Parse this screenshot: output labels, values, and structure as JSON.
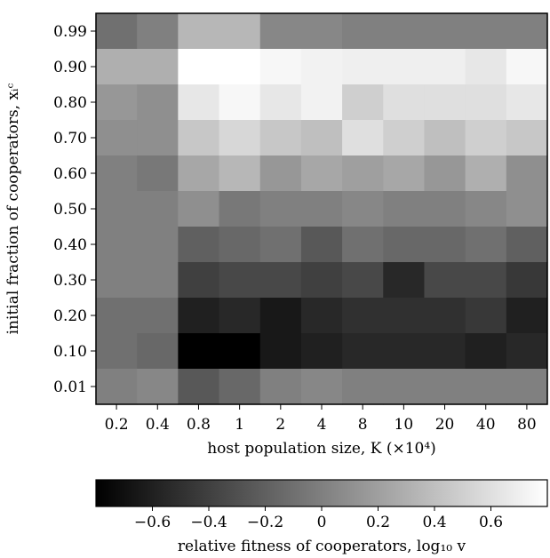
{
  "chart_data": {
    "type": "heatmap",
    "title": "",
    "xlabel": "host population size, K (×10⁴)",
    "ylabel": "initial fraction of cooperators, xᵢᶜ",
    "x_categories": [
      "0.2",
      "0.4",
      "0.8",
      "1",
      "2",
      "4",
      "8",
      "10",
      "20",
      "40",
      "80"
    ],
    "y_categories": [
      "0.99",
      "0.90",
      "0.80",
      "0.70",
      "0.60",
      "0.50",
      "0.40",
      "0.30",
      "0.20",
      "0.10",
      "0.01"
    ],
    "values": [
      [
        -0.1,
        0.0,
        0.35,
        0.35,
        0.05,
        0.05,
        0.0,
        0.0,
        0.0,
        0.0,
        0.0
      ],
      [
        0.3,
        0.3,
        0.8,
        0.8,
        0.75,
        0.72,
        0.7,
        0.7,
        0.7,
        0.65,
        0.75
      ],
      [
        0.15,
        0.1,
        0.65,
        0.75,
        0.65,
        0.72,
        0.5,
        0.6,
        0.6,
        0.6,
        0.65
      ],
      [
        0.1,
        0.1,
        0.45,
        0.55,
        0.45,
        0.4,
        0.6,
        0.5,
        0.4,
        0.5,
        0.45
      ],
      [
        0.0,
        -0.05,
        0.25,
        0.35,
        0.15,
        0.25,
        0.2,
        0.25,
        0.15,
        0.3,
        0.1
      ],
      [
        0.0,
        0.0,
        0.1,
        -0.05,
        0.0,
        0.0,
        0.05,
        0.0,
        0.0,
        0.05,
        0.1
      ],
      [
        0.0,
        0.0,
        -0.2,
        -0.15,
        -0.1,
        -0.25,
        -0.1,
        -0.15,
        -0.15,
        -0.1,
        -0.2
      ],
      [
        0.0,
        0.0,
        -0.4,
        -0.35,
        -0.35,
        -0.4,
        -0.35,
        -0.55,
        -0.35,
        -0.35,
        -0.45
      ],
      [
        -0.1,
        -0.1,
        -0.6,
        -0.55,
        -0.65,
        -0.55,
        -0.5,
        -0.5,
        -0.5,
        -0.45,
        -0.6
      ],
      [
        -0.1,
        -0.15,
        -0.8,
        -0.85,
        -0.65,
        -0.6,
        -0.55,
        -0.55,
        -0.55,
        -0.6,
        -0.55
      ],
      [
        0.0,
        0.05,
        -0.25,
        -0.15,
        0.0,
        0.05,
        0.0,
        0.0,
        0.0,
        0.0,
        0.0
      ]
    ],
    "colorbar": {
      "label": "relative fitness of cooperators, log₁₀ v",
      "min": -0.8,
      "max": 0.8,
      "ticks": [
        -0.6,
        -0.4,
        -0.2,
        0,
        0.2,
        0.4,
        0.6
      ],
      "tick_labels": [
        "−0.6",
        "−0.4",
        "−0.2",
        "0",
        "0.2",
        "0.4",
        "0.6"
      ],
      "colormap": "gray"
    },
    "grid": false
  }
}
